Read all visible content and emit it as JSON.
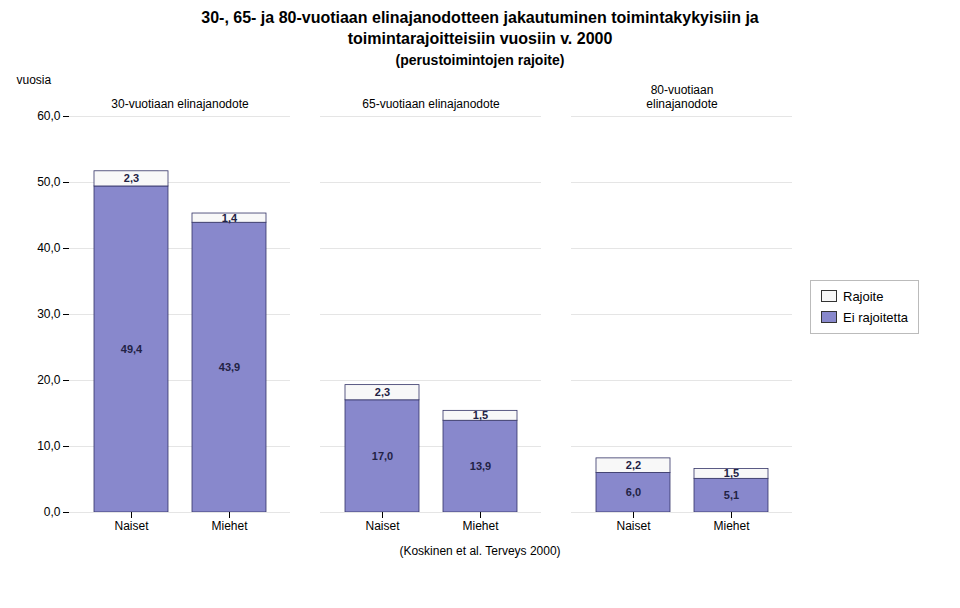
{
  "chart_data": {
    "type": "bar",
    "stacked": true,
    "data_labels": true,
    "title": "30-, 65- ja 80-vuotiaan elinajanodotteen jakautuminen toimintakykyisiin ja\ntoimintarajoitteisiin vuosiin v. 2000",
    "subtitle": "(perustoimintojen rajoite)",
    "caption": "(Koskinen et al. Terveys 2000)",
    "ylabel": "vuosia",
    "categories": [
      "Naiset",
      "Miehet",
      "Naiset",
      "Miehet",
      "Naiset",
      "Miehet"
    ],
    "annotations": [
      "30-vuotiaan elinajanodote",
      "65-vuotiaan elinajanodote",
      "80-vuotiaan\nelinajanodote"
    ],
    "series": [
      {
        "name": "Ei rajoitetta",
        "color": "#8888cc",
        "values": [
          49.4,
          43.9,
          17.0,
          13.9,
          6.0,
          5.1
        ],
        "value_labels": [
          "49,4",
          "43,9",
          "17,0",
          "13,9",
          "6,0",
          "5,1"
        ]
      },
      {
        "name": "Rajoite",
        "color": "#f8f8f8",
        "values": [
          2.3,
          1.4,
          2.3,
          1.5,
          2.2,
          1.5
        ],
        "value_labels": [
          "2,3",
          "1,4",
          "2,3",
          "1,5",
          "2,2",
          "1,5"
        ]
      }
    ],
    "ylim": [
      0,
      60
    ],
    "yticks": [
      {
        "value": 0,
        "label": "0,0"
      },
      {
        "value": 10,
        "label": "10,0"
      },
      {
        "value": 20,
        "label": "20,0"
      },
      {
        "value": 30,
        "label": "30,0"
      },
      {
        "value": 40,
        "label": "40,0"
      },
      {
        "value": 50,
        "label": "50,0"
      },
      {
        "value": 60,
        "label": "60,0"
      }
    ],
    "grid": true,
    "legend": "right"
  }
}
